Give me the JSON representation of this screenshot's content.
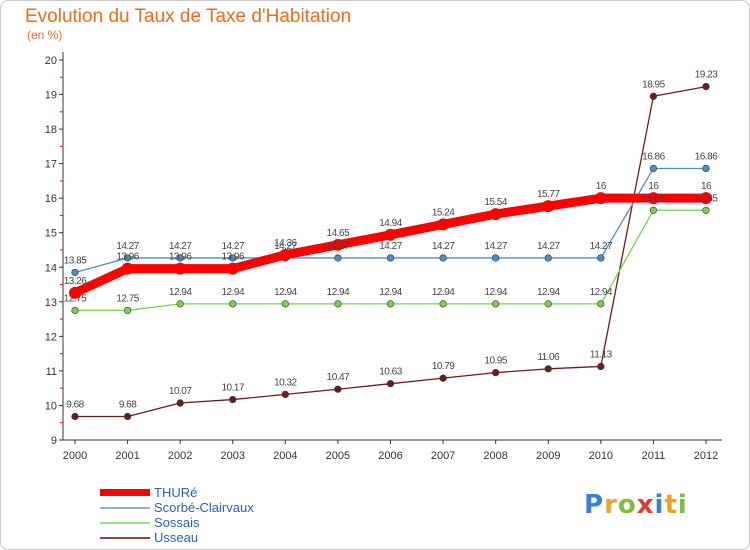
{
  "header": {
    "title": "Evolution du Taux de Taxe d'Habitation",
    "unit": "(en %)"
  },
  "chart_data": {
    "type": "line",
    "title": "Evolution du Taux de Taxe d'Habitation",
    "ylabel": "(en %)",
    "xlabel": "",
    "x": [
      "2000",
      "2001",
      "2002",
      "2003",
      "2004",
      "2005",
      "2006",
      "2007",
      "2008",
      "2009",
      "2010",
      "2011",
      "2012"
    ],
    "yticks": [
      9,
      10,
      11,
      12,
      13,
      14,
      15,
      16,
      17,
      18,
      19,
      20
    ],
    "ylim": [
      9,
      20
    ],
    "grid": false,
    "legend": "bottom-left",
    "series": [
      {
        "name": "THURé",
        "color": "#ff0000",
        "values": [
          13.26,
          13.96,
          13.96,
          13.96,
          14.36,
          14.65,
          14.94,
          15.24,
          15.54,
          15.77,
          16,
          16,
          16
        ],
        "labels": [
          "13.26",
          "13.96",
          "13.96",
          "13.96",
          "14.36",
          "14.65",
          "14.94",
          "15.24",
          "15.54",
          "15.77",
          "16",
          "16",
          "16"
        ]
      },
      {
        "name": "Scorbé-Clairvaux",
        "color": "#4a8ec8",
        "values": [
          13.85,
          14.27,
          14.27,
          14.27,
          14.27,
          14.27,
          14.27,
          14.27,
          14.27,
          14.27,
          14.27,
          16.86,
          16.86
        ],
        "labels": [
          "13.85",
          "14.27",
          "14.27",
          "14.27",
          "14.27",
          "14.27",
          "14.27",
          "14.27",
          "14.27",
          "14.27",
          "14.27",
          "16.86",
          "16.86"
        ]
      },
      {
        "name": "Sossais",
        "color": "#7dcd4f",
        "values": [
          12.75,
          12.75,
          12.94,
          12.94,
          12.94,
          12.94,
          12.94,
          12.94,
          12.94,
          12.94,
          12.94,
          15.65,
          15.65
        ],
        "labels": [
          "12.75",
          "12.75",
          "12.94",
          "12.94",
          "12.94",
          "12.94",
          "12.94",
          "12.94",
          "12.94",
          "12.94",
          "12.94",
          "15.65",
          "15.65"
        ]
      },
      {
        "name": "Usseau",
        "color": "#6b1c1c",
        "values": [
          9.68,
          9.68,
          10.07,
          10.17,
          10.32,
          10.47,
          10.63,
          10.79,
          10.95,
          11.06,
          11.13,
          18.95,
          19.23
        ],
        "labels": [
          "9.68",
          "9.68",
          "10.07",
          "10.17",
          "10.32",
          "10.47",
          "10.63",
          "10.79",
          "10.95",
          "11.06",
          "11.13",
          "18.95",
          "19.23"
        ]
      }
    ]
  },
  "legend": {
    "items": [
      {
        "label": "THURé",
        "color": "#ff0000",
        "thick": true
      },
      {
        "label": "Scorbé-Clairvaux",
        "color": "#8fb3d9",
        "thick": false
      },
      {
        "label": "Sossais",
        "color": "#a6dc82",
        "thick": false
      },
      {
        "label": "Usseau",
        "color": "#8b4a4a",
        "thick": false
      }
    ]
  },
  "logo": {
    "text": "Proxiti",
    "colors": [
      "#3b7fd0",
      "#f2a31b",
      "#7dbf3a",
      "#e23a2c",
      "#3b7fd0",
      "#f2a31b",
      "#7dbf3a"
    ]
  }
}
